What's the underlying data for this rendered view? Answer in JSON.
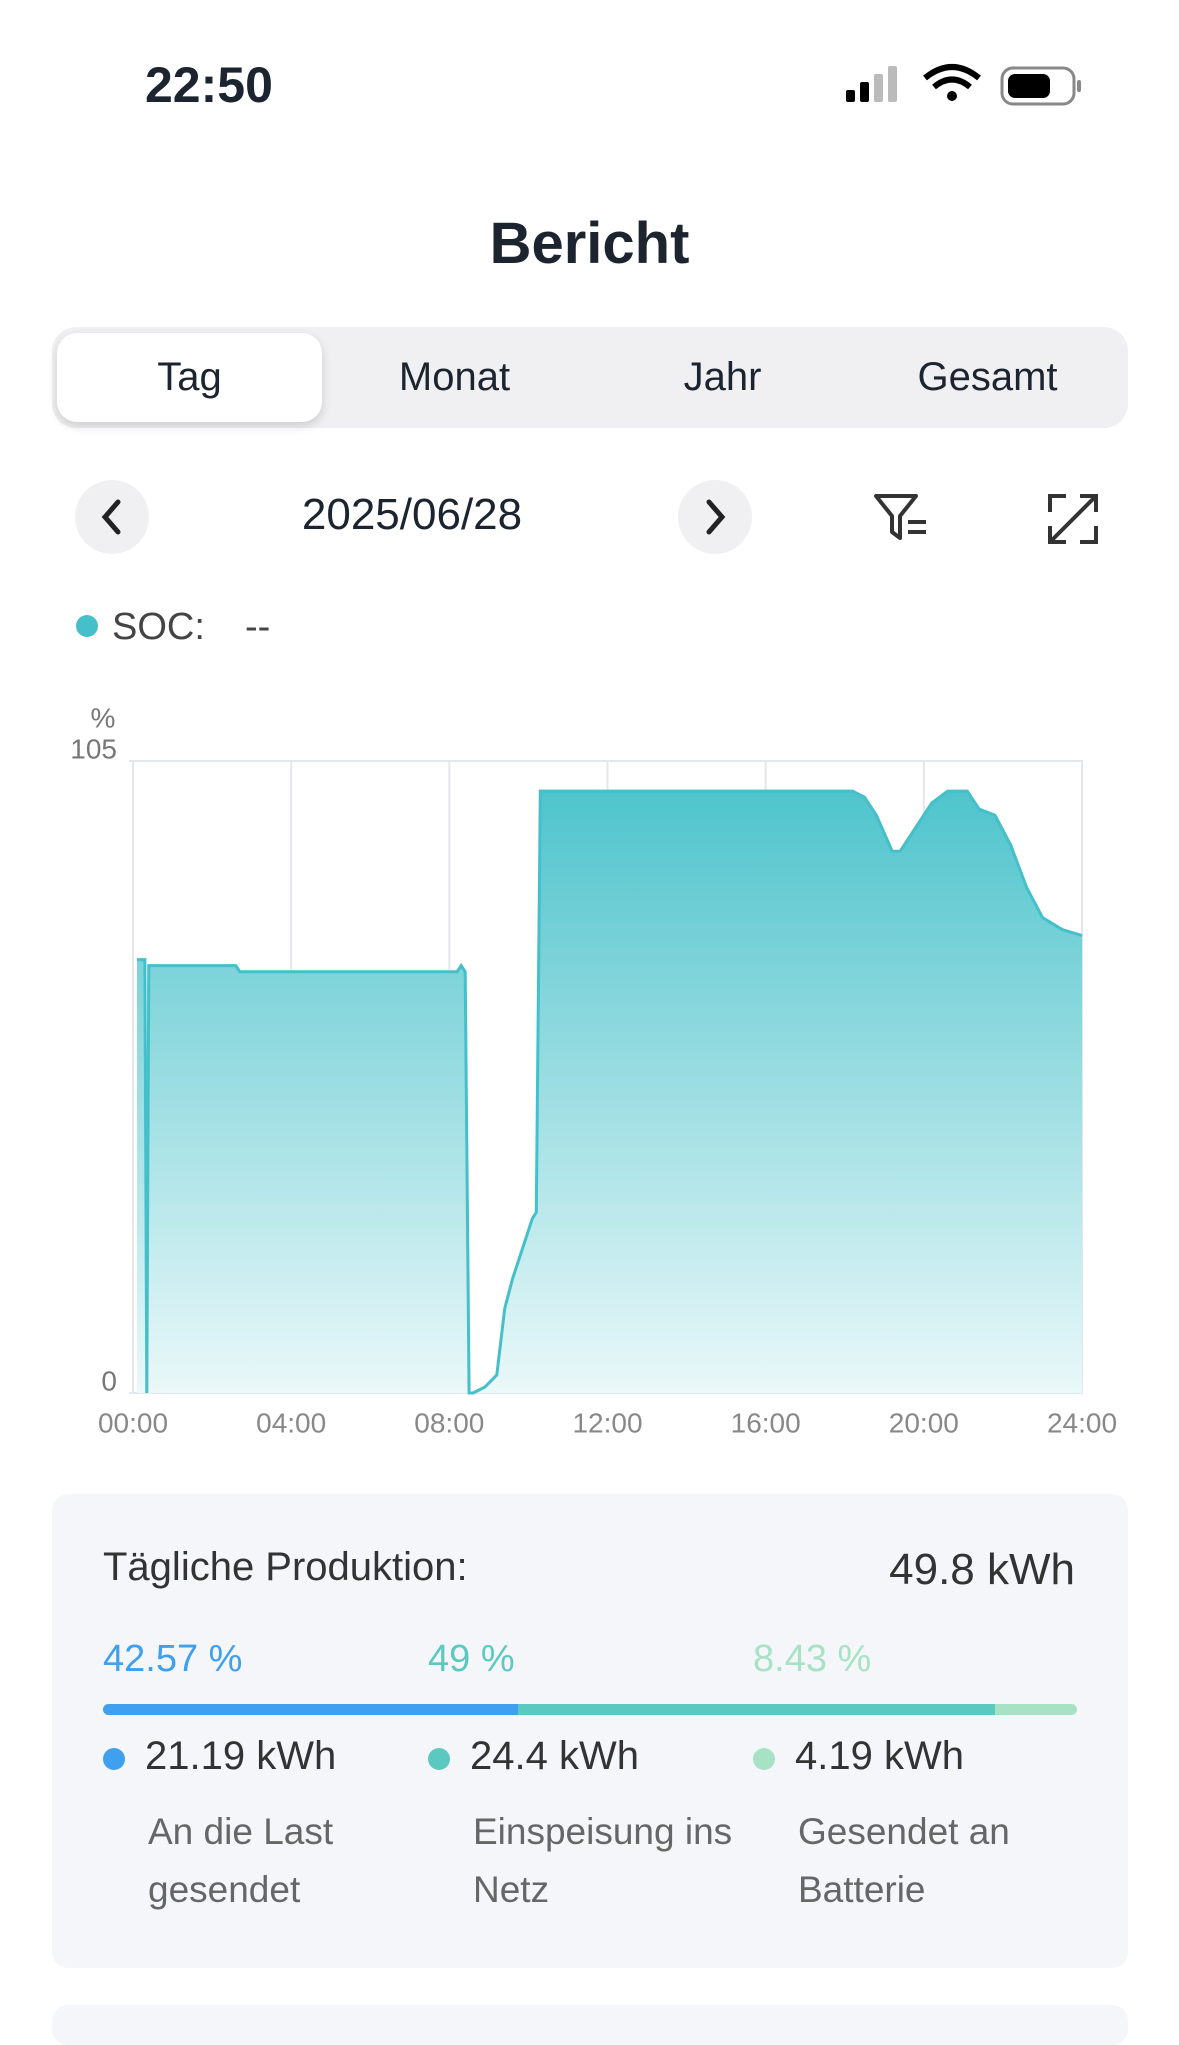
{
  "status_bar": {
    "time": "22:50"
  },
  "header": {
    "title": "Bericht"
  },
  "tabs": [
    "Tag",
    "Monat",
    "Jahr",
    "Gesamt"
  ],
  "date": "2025/06/28",
  "chart_data": {
    "type": "area",
    "y_label": "%",
    "x": [
      0.1,
      0.3,
      0.35,
      0.4,
      2.6,
      2.7,
      8.2,
      8.3,
      8.4,
      8.5,
      8.6,
      8.9,
      9.2,
      9.4,
      9.6,
      9.8,
      10.1,
      10.2,
      10.3,
      18.2,
      18.5,
      18.8,
      19.2,
      19.4,
      19.8,
      20.2,
      20.6,
      21.1,
      21.4,
      21.8,
      22.2,
      22.6,
      23.0,
      23.5,
      24
    ],
    "series": [
      {
        "name": "SOC:",
        "current": "--",
        "color": "#45bfc9",
        "values": [
          72,
          72,
          0,
          71,
          71,
          70,
          70,
          71,
          70,
          0,
          0,
          1,
          3,
          14,
          19,
          23,
          29,
          30,
          100,
          100,
          99,
          96,
          90,
          90,
          94,
          98,
          100,
          100,
          97,
          96,
          91,
          84,
          79,
          77,
          76
        ]
      }
    ],
    "xlim": [
      0,
      24
    ],
    "xticks": [
      {
        "value": 0,
        "label": "00:00"
      },
      {
        "value": 4,
        "label": "04:00"
      },
      {
        "value": 8,
        "label": "08:00"
      },
      {
        "value": 12,
        "label": "12:00"
      },
      {
        "value": 16,
        "label": "16:00"
      },
      {
        "value": 20,
        "label": "20:00"
      },
      {
        "value": 24,
        "label": "24:00"
      }
    ],
    "ylim": [
      0,
      105
    ],
    "yticks": [
      0,
      105
    ],
    "grid": true
  },
  "summary": {
    "title": "Tägliche Produktion:",
    "total": "49.8 kWh",
    "segments": [
      {
        "percent": 42.57,
        "percent_label": "42.57 %",
        "color": "#3ea0ee",
        "energy": "21.19 kWh",
        "description": "An die Last gesendet"
      },
      {
        "percent": 49,
        "percent_label": "49 %",
        "color": "#5cc9c0",
        "energy": "24.4 kWh",
        "description": "Einspeisung ins Netz"
      },
      {
        "percent": 8.43,
        "percent_label": "8.43 %",
        "color": "#a8e2c4",
        "energy": "4.19 kWh",
        "description": "Gesendet an Batterie"
      }
    ]
  }
}
